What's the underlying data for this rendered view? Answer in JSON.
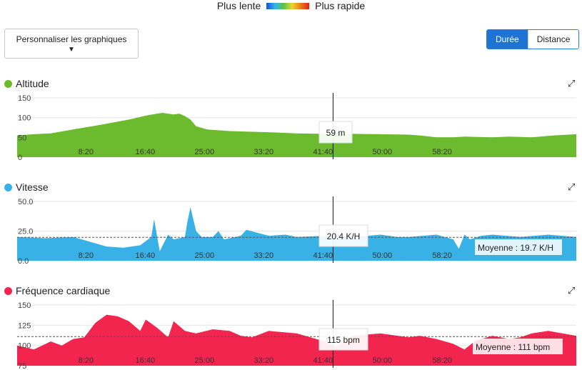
{
  "legend": {
    "slow": "Plus lente",
    "fast": "Plus rapide"
  },
  "customize_label": "Personnaliser les graphiques",
  "toggle": {
    "duration": "Durée",
    "distance": "Distance"
  },
  "x_ticks": [
    "8:20",
    "16:40",
    "25:00",
    "33:20",
    "41:40",
    "50:00",
    "58:20"
  ],
  "cursor": {
    "time_fraction": 0.565
  },
  "colors": {
    "altitude": "#6cba2e",
    "speed": "#38b2e6",
    "heart": "#f2254f",
    "accent": "#1f74d1"
  },
  "charts": {
    "altitude": {
      "title": "Altitude",
      "tooltip": "59 m",
      "y_ticks": [
        "150",
        "100",
        "50",
        "0"
      ],
      "expand_icon": "expand-icon"
    },
    "speed": {
      "title": "Vitesse",
      "tooltip": "20.4 K/H",
      "average": "Moyenne : 19.7 K/H",
      "y_ticks": [
        "50.0",
        "25.0",
        "0.0"
      ],
      "expand_icon": "expand-icon"
    },
    "heart": {
      "title": "Fréquence cardiaque",
      "tooltip": "115 bpm",
      "average": "Moyenne : 111 bpm",
      "y_ticks": [
        "150",
        "125",
        "100",
        "75"
      ],
      "expand_icon": "expand-icon"
    }
  },
  "chart_data": [
    {
      "type": "area",
      "title": "Altitude",
      "x_unit": "fraction of duration",
      "ylim": [
        0,
        150
      ],
      "x": [
        0.0,
        0.03,
        0.06,
        0.1,
        0.15,
        0.2,
        0.23,
        0.25,
        0.26,
        0.28,
        0.29,
        0.3,
        0.31,
        0.32,
        0.34,
        0.36,
        0.38,
        0.4,
        0.45,
        0.5,
        0.55,
        0.6,
        0.65,
        0.7,
        0.72,
        0.75,
        0.78,
        0.8,
        0.85,
        0.88,
        0.92,
        0.96,
        1.0
      ],
      "y": [
        55,
        58,
        60,
        70,
        82,
        95,
        105,
        110,
        112,
        108,
        110,
        104,
        95,
        78,
        70,
        68,
        66,
        65,
        63,
        60,
        59,
        59,
        58,
        57,
        55,
        50,
        50,
        52,
        50,
        52,
        50,
        55,
        58
      ]
    },
    {
      "type": "area",
      "title": "Vitesse",
      "x_unit": "fraction of duration",
      "ylim": [
        0,
        50
      ],
      "average": 19.7,
      "x": [
        0.0,
        0.05,
        0.1,
        0.13,
        0.16,
        0.19,
        0.22,
        0.24,
        0.245,
        0.255,
        0.27,
        0.28,
        0.3,
        0.305,
        0.31,
        0.32,
        0.33,
        0.35,
        0.36,
        0.37,
        0.4,
        0.41,
        0.45,
        0.48,
        0.5,
        0.55,
        0.6,
        0.65,
        0.68,
        0.7,
        0.75,
        0.78,
        0.79,
        0.8,
        0.81,
        0.83,
        0.85,
        0.9,
        0.95,
        1.0
      ],
      "y": [
        20,
        19,
        20,
        16,
        12,
        11,
        13,
        20,
        35,
        8,
        22,
        18,
        20,
        34,
        45,
        25,
        20,
        20,
        25,
        18,
        21,
        26,
        21,
        22,
        20,
        21,
        20,
        22,
        20,
        20,
        22,
        18,
        10,
        22,
        18,
        21,
        22,
        20,
        22,
        20
      ]
    },
    {
      "type": "area",
      "title": "Fréquence cardiaque",
      "x_unit": "fraction of duration",
      "ylim": [
        75,
        150
      ],
      "average": 111,
      "x": [
        0.0,
        0.03,
        0.06,
        0.08,
        0.1,
        0.12,
        0.14,
        0.16,
        0.18,
        0.2,
        0.22,
        0.23,
        0.25,
        0.27,
        0.28,
        0.3,
        0.32,
        0.35,
        0.38,
        0.4,
        0.42,
        0.45,
        0.5,
        0.55,
        0.57,
        0.6,
        0.65,
        0.7,
        0.72,
        0.75,
        0.78,
        0.8,
        0.82,
        0.85,
        0.88,
        0.9,
        0.92,
        0.95,
        1.0
      ],
      "y": [
        100,
        95,
        105,
        100,
        108,
        110,
        128,
        138,
        136,
        130,
        118,
        132,
        122,
        110,
        130,
        118,
        115,
        120,
        118,
        112,
        110,
        118,
        115,
        105,
        98,
        112,
        115,
        110,
        112,
        108,
        102,
        95,
        106,
        112,
        108,
        110,
        115,
        118,
        112
      ]
    }
  ]
}
